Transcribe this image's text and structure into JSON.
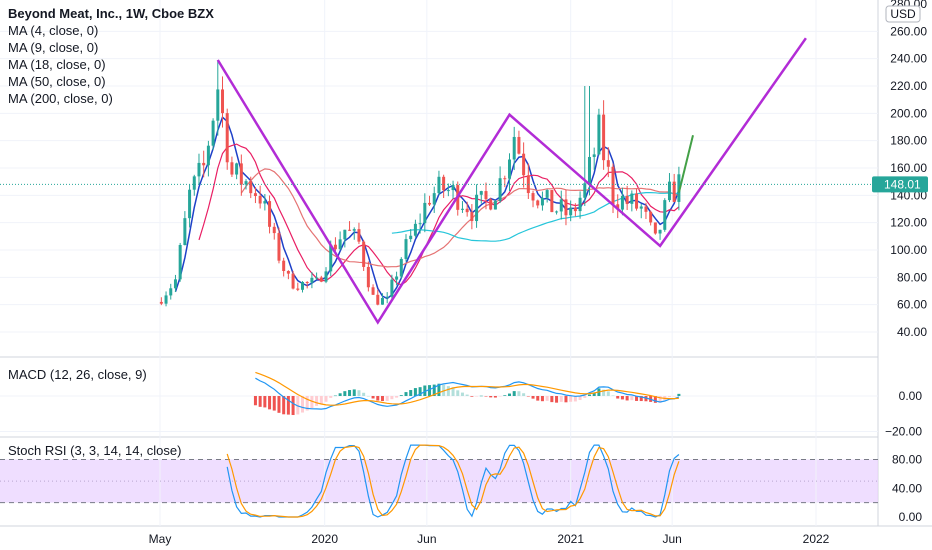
{
  "chart_data": [
    {
      "type": "candlestick",
      "title": "Beyond Meat, Inc., 1W, Cboe BZX",
      "currency": "USD",
      "last_price": "148.01",
      "ylim": [
        30,
        280
      ],
      "y_ticks": [
        "280.00",
        "260.00",
        "240.00",
        "220.00",
        "200.00",
        "180.00",
        "160.00",
        "140.00",
        "120.00",
        "100.00",
        "80.00",
        "60.00",
        "40.00"
      ],
      "x_ticks": [
        "May",
        "2020",
        "Jun",
        "2021",
        "Jun",
        "2022"
      ],
      "legend": [
        "MA (4, close, 0)",
        "MA (9, close, 0)",
        "MA (18, close, 0)",
        "MA (50, close, 0)",
        "MA (200, close, 0)"
      ],
      "close_series_approx": [
        [
          "2019-05-03",
          66
        ],
        [
          "2019-05-24",
          78
        ],
        [
          "2019-06-14",
          140
        ],
        [
          "2019-07-05",
          160
        ],
        [
          "2019-07-26",
          220
        ],
        [
          "2019-08-16",
          155
        ],
        [
          "2019-09-06",
          150
        ],
        [
          "2019-09-27",
          140
        ],
        [
          "2019-10-18",
          105
        ],
        [
          "2019-11-08",
          78
        ],
        [
          "2019-11-29",
          75
        ],
        [
          "2019-12-20",
          75
        ],
        [
          "2020-01-10",
          100
        ],
        [
          "2020-01-31",
          115
        ],
        [
          "2020-02-21",
          105
        ],
        [
          "2020-03-13",
          65
        ],
        [
          "2020-04-03",
          62
        ],
        [
          "2020-04-24",
          95
        ],
        [
          "2020-05-15",
          115
        ],
        [
          "2020-06-05",
          140
        ],
        [
          "2020-06-26",
          145
        ],
        [
          "2020-07-17",
          140
        ],
        [
          "2020-08-07",
          130
        ],
        [
          "2020-08-28",
          135
        ],
        [
          "2020-09-18",
          150
        ],
        [
          "2020-10-09",
          185
        ],
        [
          "2020-10-30",
          150
        ],
        [
          "2020-11-20",
          135
        ],
        [
          "2020-12-11",
          130
        ],
        [
          "2021-01-01",
          125
        ],
        [
          "2021-01-22",
          145
        ],
        [
          "2021-02-12",
          185
        ],
        [
          "2021-03-05",
          140
        ],
        [
          "2021-03-26",
          135
        ],
        [
          "2021-04-16",
          130
        ],
        [
          "2021-05-07",
          105
        ],
        [
          "2021-05-28",
          140
        ],
        [
          "2021-06-11",
          148
        ]
      ],
      "drawings": [
        {
          "type": "polyline",
          "color": "#b22cd6",
          "points": [
            [
              "2019-07-26",
              239
            ],
            [
              "2020-03-20",
              47
            ],
            [
              "2020-10-02",
              199
            ],
            [
              "2021-05-14",
              103
            ],
            [
              "2021-12-17",
              255
            ]
          ]
        },
        {
          "type": "trend-arrow",
          "color": "#43a047",
          "points": [
            [
              "2021-06-11",
              142
            ],
            [
              "2021-07-02",
              184
            ]
          ]
        }
      ]
    },
    {
      "type": "macd",
      "title": "MACD (12, 26, close, 9)",
      "ylim": [
        -25,
        20
      ],
      "y_ticks": [
        "0.00",
        "−20.00"
      ]
    },
    {
      "type": "stoch_rsi",
      "title": "Stoch RSI (3, 3, 14, 14, close)",
      "ylim": [
        -5,
        100
      ],
      "y_ticks": [
        "80.00",
        "40.00",
        "0.00"
      ],
      "band": [
        20,
        80
      ]
    }
  ],
  "colors": {
    "up": "#26a69a",
    "down": "#ef5350",
    "ma4": "#1e40c8",
    "ma9": "#e91e63",
    "ma18": "#e57373",
    "ma50": "#f57c00",
    "ma200": "#26c6da",
    "drawing": "#b22cd6",
    "arrow": "#43a047",
    "macd": "#2196f3",
    "signal": "#ff9800",
    "k": "#2196f3",
    "d": "#ff9800",
    "band": "#e9d3ff",
    "price_tag": "#26a69a"
  }
}
